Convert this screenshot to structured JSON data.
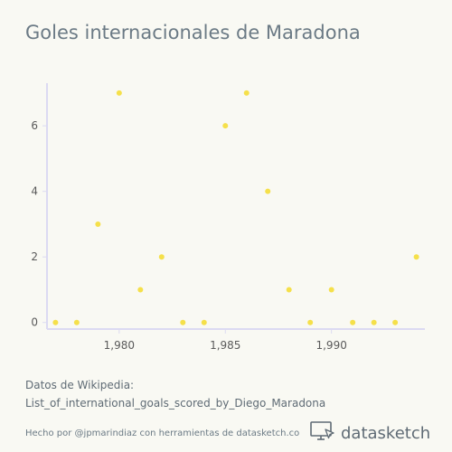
{
  "chart_data": {
    "type": "scatter",
    "title": "Goles internacionales de Maradona",
    "x": [
      1977,
      1978,
      1979,
      1980,
      1981,
      1982,
      1983,
      1984,
      1985,
      1986,
      1987,
      1988,
      1989,
      1990,
      1991,
      1992,
      1993,
      1994
    ],
    "y": [
      0,
      0,
      3,
      7,
      1,
      2,
      0,
      0,
      6,
      7,
      4,
      1,
      0,
      1,
      0,
      0,
      0,
      2
    ],
    "x_ticks": [
      1980,
      1985,
      1990
    ],
    "x_tick_labels": [
      "1,980",
      "1,985",
      "1,990"
    ],
    "y_ticks": [
      0,
      2,
      4,
      6
    ],
    "y_tick_labels": [
      "0",
      "2",
      "4",
      "6"
    ],
    "xlim": [
      1976.6,
      1994.4
    ],
    "ylim": [
      -0.2,
      7.3
    ],
    "grid": false,
    "marker_color": "#f5e04a",
    "axis_color": "#dcdaf2"
  },
  "source": {
    "line1": "Datos de Wikipedia:",
    "line2": "List_of_international_goals_scored_by_Diego_Maradona"
  },
  "footer": {
    "credit": "Hecho por @jpmarindiaz con herramientas de datasketch.co",
    "brand_icon": "monitor-cursor-icon",
    "brand_name": "datasketch"
  }
}
